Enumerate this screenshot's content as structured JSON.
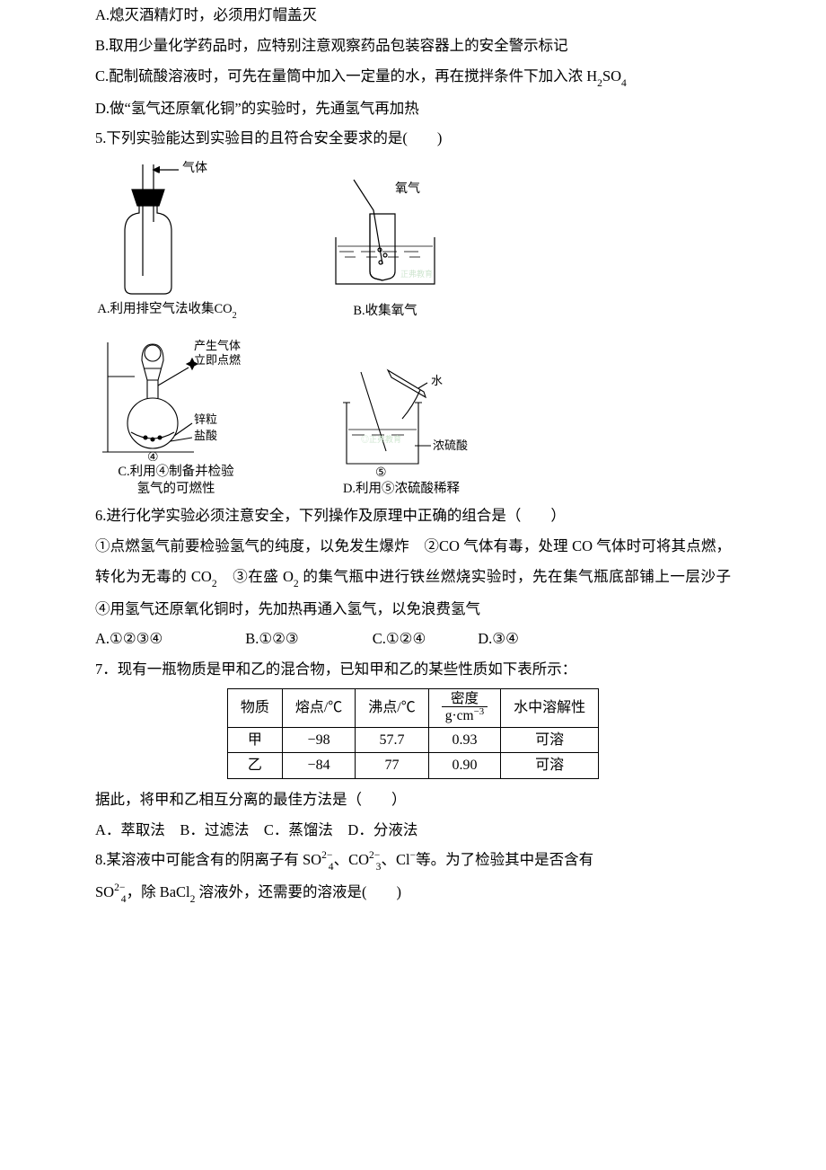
{
  "q4": {
    "choices": {
      "A": "A.熄灭酒精灯时，必须用灯帽盖灭",
      "B": "B.取用少量化学药品时，应特别注意观察药品包装容器上的安全警示标记",
      "C_prefix": "C.配制硫酸溶液时，可先在量筒中加入一定量的水，再在搅拌条件下加入浓 H",
      "C_sub": "2",
      "C_mid": "SO",
      "C_sub2": "4",
      "D": "D.做“氢气还原氧化铜”的实验时，先通氢气再加热"
    }
  },
  "q5": {
    "stem": "5.下列实验能达到实验目的且符合安全要求的是(　　)",
    "diagA": {
      "label1": "气体",
      "caption_pre": "A.利用排空气法收集CO",
      "caption_sub": "2"
    },
    "diagB": {
      "label1": "氧气",
      "caption": "B.收集氧气",
      "wm": "正弗教育"
    },
    "diagC": {
      "label1": "产生气体",
      "label2": "立即点燃",
      "label3": "锌粒",
      "label4": "盐酸",
      "num": "④",
      "caption": "C.利用④制备并检验",
      "caption2": "氢气的可燃性"
    },
    "diagD": {
      "label1": "水",
      "label2": "浓硫酸",
      "num": "⑤",
      "caption": "D.利用⑤浓硫酸稀释",
      "wm": "◎正弗教育"
    }
  },
  "q6": {
    "stem": "6.进行化学实验必须注意安全，下列操作及原理中正确的组合是（　　）",
    "body_pre": "①点燃氢气前要检验氢气的纯度，以免发生爆炸　②CO 气体有毒，处理 CO 气体时可将其点燃，转化为无毒的 CO",
    "body_sub1": "2",
    "body_mid": "　③在盛 O",
    "body_sub2": "2",
    "body_post": " 的集气瓶中进行铁丝燃烧实验时，先在集气瓶底部铺上一层沙子　④用氢气还原氧化铜时，先加热再通入氢气，以免浪费氢气",
    "choices": {
      "A": "A.①②③④",
      "B": "B.①②③",
      "C": "C.①②④",
      "D": "D.③④"
    }
  },
  "q7": {
    "stem": "7．现有一瓶物质是甲和乙的混合物，已知甲和乙的某些性质如下表所示：",
    "table": {
      "headers": [
        "物质",
        "熔点/℃",
        "沸点/℃",
        "density_num",
        "水中溶解性"
      ],
      "density_header": {
        "num": "密度",
        "den_pre": "g·cm",
        "den_sup": "−3"
      },
      "rows": [
        [
          "甲",
          "−98",
          "57.7",
          "0.93",
          "可溶"
        ],
        [
          "乙",
          "−84",
          "77",
          "0.90",
          "可溶"
        ]
      ]
    },
    "tail": "据此，将甲和乙相互分离的最佳方法是（　　）",
    "choices": "A．萃取法　B．过滤法　C．蒸馏法　D．分液法"
  },
  "q8": {
    "stem_pre": "8.某溶液中可能含有的阴离子有 SO",
    "s1": "2−",
    "sb1": "4",
    "mid1": "、CO",
    "s2": "2−",
    "sb2": "3",
    "mid2": "、Cl",
    "s3": "−",
    "mid3": "等。为了检验其中是否含有",
    "line2_pre": "SO",
    "s4": "2−",
    "sb4": "4",
    "mid4": "，除 BaCl",
    "sb5": "2",
    "tail": " 溶液外，还需要的溶液是(　　)"
  },
  "layout": {
    "choice_gap_q6_AB": 92,
    "choice_gap_q6_BC": 82,
    "choice_gap_q6_CD": 58
  },
  "colors": {
    "text": "#000000",
    "bg": "#ffffff",
    "watermark": "#cfe6d0",
    "stroke": "#000000"
  }
}
